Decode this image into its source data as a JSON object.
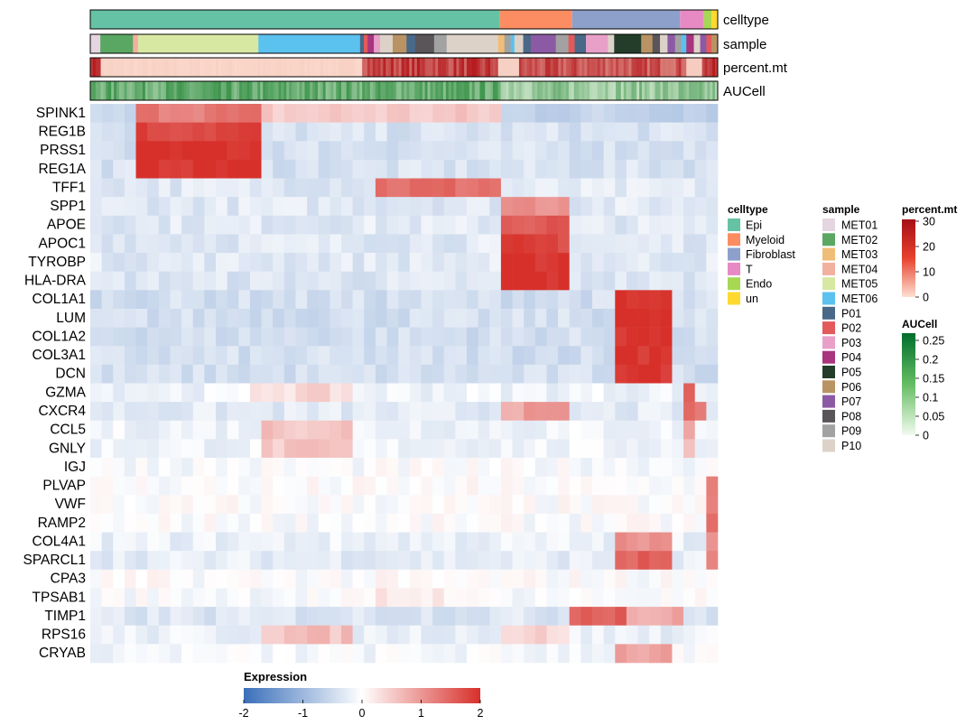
{
  "chart_data": {
    "type": "heatmap",
    "title": "",
    "annotation_tracks": [
      "celltype",
      "sample",
      "percent.mt",
      "AUCell"
    ],
    "genes": [
      "SPINK1",
      "REG1B",
      "PRSS1",
      "REG1A",
      "TFF1",
      "SPP1",
      "APOE",
      "APOC1",
      "TYROBP",
      "HLA-DRA",
      "COL1A1",
      "LUM",
      "COL1A2",
      "COL3A1",
      "DCN",
      "GZMA",
      "CXCR4",
      "CCL5",
      "GNLY",
      "IGJ",
      "PLVAP",
      "VWF",
      "RAMP2",
      "COL4A1",
      "SPARCL1",
      "CPA3",
      "TPSAB1",
      "TIMP1",
      "RPS16",
      "CRYAB"
    ],
    "column_groups": [
      {
        "celltype": "Epi",
        "fraction": 0.653
      },
      {
        "celltype": "Myeloid",
        "fraction": 0.115
      },
      {
        "celltype": "Fibroblast",
        "fraction": 0.172
      },
      {
        "celltype": "T",
        "fraction": 0.038
      },
      {
        "celltype": "Endo",
        "fraction": 0.012
      },
      {
        "celltype": "un",
        "fraction": 0.01
      }
    ],
    "expression_scale": {
      "title": "Expression",
      "min": -2,
      "max": 2,
      "ticks": [
        "-2",
        "-1",
        "0",
        "1",
        "2"
      ],
      "colors": [
        "#3a6fba",
        "#ffffff",
        "#d7302a"
      ]
    },
    "legends": {
      "celltype": {
        "title": "celltype",
        "items": [
          {
            "label": "Epi",
            "color": "#66c2a5"
          },
          {
            "label": "Myeloid",
            "color": "#fc8d62"
          },
          {
            "label": "Fibroblast",
            "color": "#8da0cb"
          },
          {
            "label": "T",
            "color": "#e78ac3"
          },
          {
            "label": "Endo",
            "color": "#a6d854"
          },
          {
            "label": "un",
            "color": "#ffd92f"
          }
        ]
      },
      "sample": {
        "title": "sample",
        "items": [
          {
            "label": "MET01",
            "color": "#e5d5e0"
          },
          {
            "label": "MET02",
            "color": "#5aa764"
          },
          {
            "label": "MET03",
            "color": "#f0bd78"
          },
          {
            "label": "MET04",
            "color": "#f2b09f"
          },
          {
            "label": "MET05",
            "color": "#d7e8a2"
          },
          {
            "label": "MET06",
            "color": "#5bc1ee"
          },
          {
            "label": "P01",
            "color": "#4a6887"
          },
          {
            "label": "P02",
            "color": "#e35a5b"
          },
          {
            "label": "P03",
            "color": "#e8a0c9"
          },
          {
            "label": "P04",
            "color": "#a8357e"
          },
          {
            "label": "P05",
            "color": "#233d2a"
          },
          {
            "label": "P06",
            "color": "#b99364"
          },
          {
            "label": "P07",
            "color": "#8c5aa5"
          },
          {
            "label": "P08",
            "color": "#595558"
          },
          {
            "label": "P09",
            "color": "#a2a2a2"
          },
          {
            "label": "P10",
            "color": "#ddd2c8"
          }
        ]
      },
      "percent_mt": {
        "title": "percent.mt",
        "min": 0,
        "max": 30,
        "ticks": [
          "30",
          "20",
          "10",
          "0"
        ]
      },
      "aucell": {
        "title": "AUCell",
        "min": 0,
        "max": 0.25,
        "ticks": [
          "0.25",
          "0.2",
          "0.15",
          "0.1",
          "0.05",
          "0"
        ]
      }
    }
  }
}
